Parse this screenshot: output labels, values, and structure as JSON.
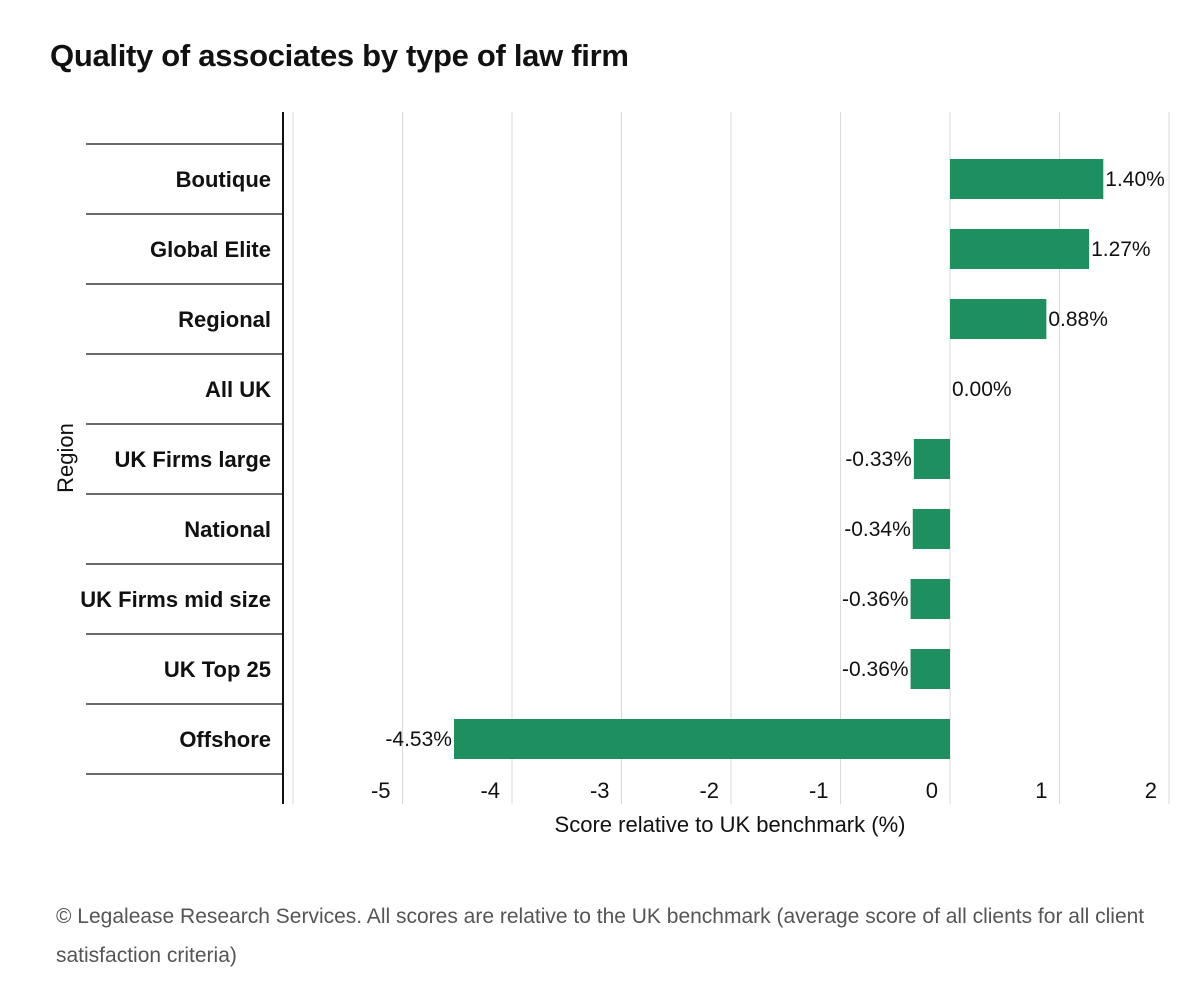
{
  "chart_data": {
    "type": "bar",
    "orientation": "horizontal",
    "title": "Quality of associates by type of law firm",
    "xlabel": "Score relative to UK benchmark (%)",
    "ylabel": "Region",
    "categories": [
      "Boutique",
      "Global Elite",
      "Regional",
      "All UK",
      "UK Firms large",
      "National",
      "UK Firms mid size",
      "UK Top 25",
      "Offshore"
    ],
    "values": [
      1.4,
      1.27,
      0.88,
      0.0,
      -0.33,
      -0.34,
      -0.36,
      -0.36,
      -4.53
    ],
    "value_labels": [
      "1.40%",
      "1.27%",
      "0.88%",
      "0.00%",
      "-0.33%",
      "-0.34%",
      "-0.36%",
      "-0.36%",
      "-4.53%"
    ],
    "xlim": [
      -6,
      2
    ],
    "xticks": [
      -5,
      -4,
      -3,
      -2,
      -1,
      0,
      1,
      2
    ],
    "xtick_labels": [
      "-5",
      "-4",
      "-3",
      "-2",
      "-1",
      "0",
      "1",
      "2"
    ],
    "bar_color": "#1e9060",
    "grid": true
  },
  "footnote": "© Legalease Research Services. All scores are relative to the UK benchmark (average score of all clients for all client satisfaction criteria)"
}
